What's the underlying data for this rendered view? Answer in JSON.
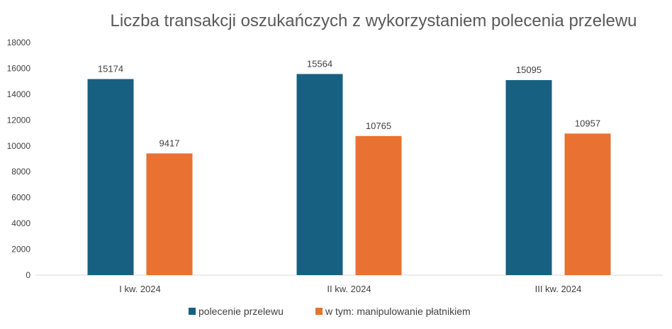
{
  "chart_data": {
    "type": "bar",
    "title": "Liczba transakcji oszukańczych z wykorzystaniem polecenia przelewu",
    "categories": [
      "I kw. 2024",
      "II kw. 2024",
      "III kw. 2024"
    ],
    "series": [
      {
        "name": "polecenie przelewu",
        "color": "#176082",
        "values": [
          15174,
          15564,
          15095
        ]
      },
      {
        "name": "w tym: manipulowanie płatnikiem",
        "color": "#e97132",
        "values": [
          9417,
          10765,
          10957
        ]
      }
    ],
    "yticks": [
      "0",
      "2000",
      "4000",
      "6000",
      "8000",
      "10000",
      "12000",
      "14000",
      "16000",
      "18000"
    ],
    "ylim": [
      0,
      18000
    ],
    "grid": false,
    "legend": "bottom"
  }
}
